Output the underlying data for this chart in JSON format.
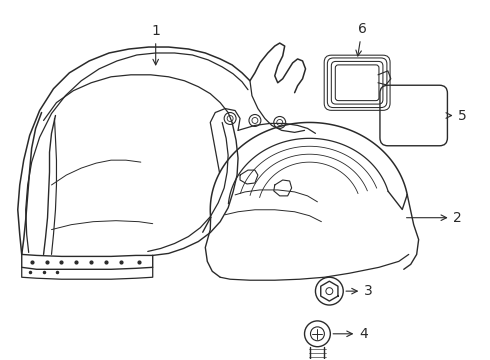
{
  "background_color": "#ffffff",
  "line_color": "#2a2a2a",
  "line_width": 1.0,
  "font_size": 10,
  "fig_w": 4.9,
  "fig_h": 3.6,
  "dpi": 100
}
